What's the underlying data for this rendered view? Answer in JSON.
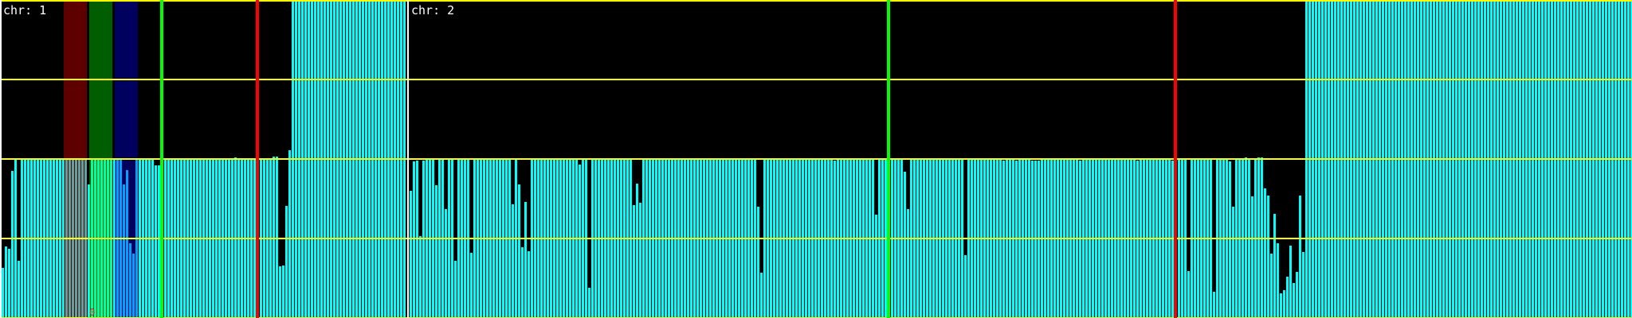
{
  "chart_data": {
    "type": "bar",
    "ylim": [
      0,
      4
    ],
    "gridlines_y": [
      0,
      1,
      2,
      3,
      4
    ],
    "grid": true,
    "colors": {
      "background": "#000000",
      "bar": "#00ffff",
      "grid": "#ffff00",
      "separator": "#ffffff",
      "marker_green": "#00ff00",
      "marker_red": "#ff0000",
      "band_red": "#ff0000",
      "band_green": "#00ff00",
      "band_blue": "#0000ff",
      "annotation": "#ff2020"
    },
    "panels": [
      {
        "label": "chr: 1",
        "values": [
          0.63,
          0.9,
          0.87,
          1.85,
          2,
          0.72,
          2,
          2,
          2,
          2,
          2,
          2,
          2,
          2,
          2,
          2,
          2,
          2,
          2,
          2,
          2,
          2,
          2,
          2,
          2,
          2,
          2,
          1.68,
          2,
          2,
          2,
          2,
          2,
          2,
          2,
          2,
          2,
          2,
          1.68,
          1.86,
          0.94,
          0.81,
          2,
          2,
          2,
          2,
          2,
          2,
          1.92,
          1.92,
          2,
          2,
          2,
          2,
          2,
          2,
          2,
          2,
          2,
          2,
          2,
          2,
          2,
          2,
          2,
          2,
          2,
          2,
          2,
          2,
          2,
          2,
          2,
          2.02,
          2,
          2,
          2,
          2,
          2,
          2,
          2,
          2,
          2.01,
          2,
          2,
          2.03,
          2.03,
          0.65,
          0.66,
          1.41,
          2.11,
          4,
          4,
          4,
          4,
          4,
          4,
          4,
          4,
          4,
          4,
          4,
          4,
          4,
          4,
          4,
          4,
          4,
          4,
          4,
          4,
          4,
          4,
          4,
          4,
          4,
          4,
          4,
          4,
          4,
          4,
          4,
          4,
          4,
          4,
          4,
          4
        ],
        "annotation": "0"
      },
      {
        "label": "chr: 2",
        "values": [
          1.6,
          1.97,
          1.98,
          1.03,
          1.98,
          2,
          2,
          2,
          1.67,
          2,
          2,
          1.37,
          2,
          2,
          0.72,
          2,
          2,
          2,
          2,
          0.82,
          2,
          2,
          2,
          2,
          2,
          2,
          2,
          2,
          2,
          2,
          2,
          2,
          1.43,
          2,
          1.68,
          0.89,
          1.46,
          0.84,
          2,
          2,
          2,
          2,
          2,
          2,
          2,
          2,
          2,
          2,
          2,
          2,
          2,
          2,
          2,
          1.93,
          2,
          2,
          0.38,
          2,
          2,
          2,
          2,
          2,
          2,
          2,
          2,
          2,
          2,
          2,
          2,
          2,
          1.42,
          1.69,
          1.45,
          2,
          2,
          2,
          2,
          2,
          2,
          2,
          2,
          2,
          2,
          2,
          2,
          2,
          2,
          2,
          2,
          2,
          2,
          2,
          2,
          2,
          2,
          2,
          2,
          2,
          2,
          2,
          2,
          2,
          2,
          2,
          2,
          2,
          2,
          2,
          2,
          1.4,
          0.57,
          2,
          2,
          2,
          2,
          2,
          2,
          2,
          2,
          2,
          2,
          2,
          2,
          2,
          2,
          2,
          2,
          2,
          2,
          2,
          2,
          2,
          2,
          1.98,
          2,
          2,
          2,
          2,
          2,
          2,
          2,
          2,
          2,
          2,
          2,
          2,
          1.3,
          2,
          2,
          2,
          2,
          2,
          2,
          2,
          2,
          1.84,
          1.37,
          2,
          2,
          2,
          2,
          2,
          2,
          2,
          2,
          2,
          2,
          2,
          2,
          2,
          2,
          2,
          2,
          2,
          0.79,
          2,
          2,
          2,
          2,
          2,
          2,
          2,
          2,
          2,
          2,
          2,
          1.98,
          2.01,
          2,
          2,
          1.98,
          2.01,
          2.01,
          2.01,
          2.01,
          1.98,
          1.98,
          1.98,
          2.01,
          2,
          2,
          2,
          2,
          2,
          2,
          2,
          2,
          2,
          2,
          2,
          1.98,
          2,
          2,
          2,
          2,
          2,
          2,
          2,
          2,
          2,
          2,
          2,
          2,
          2,
          2,
          2,
          2,
          2,
          1.98,
          2,
          2,
          2,
          2,
          2,
          2,
          2,
          2,
          2,
          2,
          1.98,
          1.98,
          2,
          2,
          2,
          0.59,
          2,
          2,
          2,
          2,
          2,
          2,
          2,
          0.33,
          2.01,
          2,
          2,
          2,
          1.97,
          1.4,
          2.01,
          2,
          2,
          2.02,
          2,
          1.53,
          2,
          2.02,
          2.02,
          1.63,
          1.54,
          0.81,
          1.31,
          0.94,
          0.31,
          0.35,
          0.52,
          0.91,
          0.44,
          0.58,
          1.54,
          0.83,
          4,
          4,
          4,
          4,
          4,
          4,
          4,
          4,
          4,
          4,
          4,
          4,
          4,
          4,
          4,
          4,
          4,
          4,
          4,
          4,
          4,
          4,
          4,
          4,
          4,
          4,
          4,
          4,
          4,
          4,
          4,
          4,
          4,
          4,
          4,
          4,
          4,
          4,
          4,
          4,
          4,
          4,
          4,
          4,
          4,
          4,
          4,
          4,
          4,
          4,
          4,
          4,
          4,
          4,
          4,
          4,
          4,
          4,
          4,
          4,
          4,
          4,
          4,
          4,
          4,
          4,
          4,
          4,
          4,
          4,
          4,
          4,
          4,
          4,
          4,
          4,
          4,
          4,
          4,
          4,
          4,
          4,
          4,
          4,
          4,
          4,
          4,
          4,
          4,
          4,
          4,
          4,
          4,
          4,
          4,
          4,
          4,
          4,
          4,
          4,
          4,
          4,
          4,
          4,
          4,
          4,
          4,
          4,
          4
        ]
      }
    ]
  }
}
